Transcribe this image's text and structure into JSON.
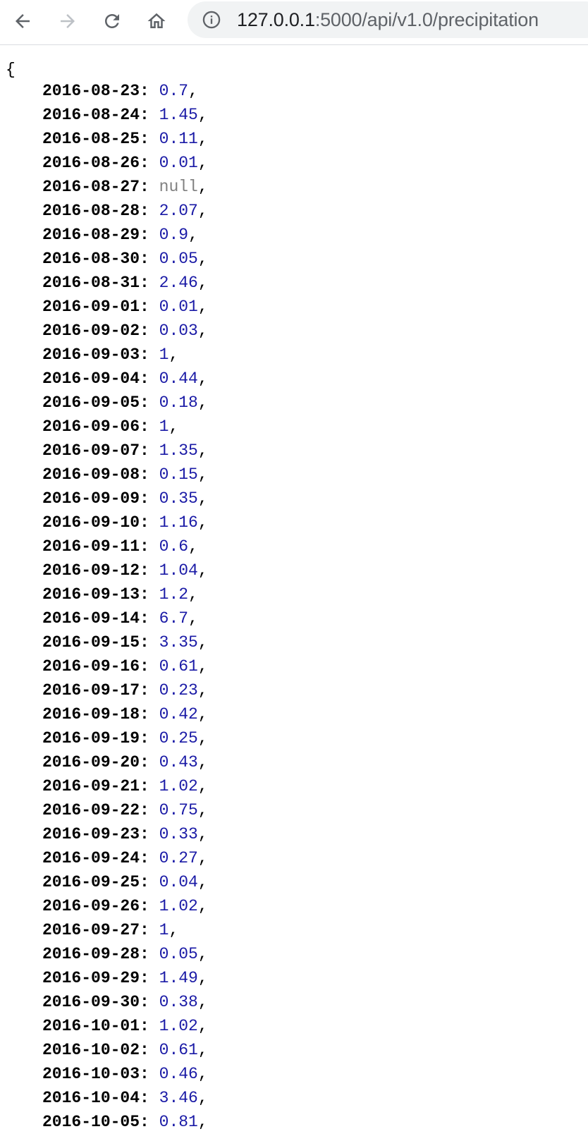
{
  "browser": {
    "url_host": "127.0.0.1",
    "url_rest": ":5000/api/v1.0/precipitation",
    "icons": {
      "back": "arrow-left-icon",
      "forward": "arrow-right-icon",
      "reload": "reload-icon",
      "home": "home-icon",
      "site_info": "info-icon"
    }
  },
  "json": {
    "open_brace": "{",
    "entries": [
      {
        "date": "2016-08-23",
        "value": "0.7"
      },
      {
        "date": "2016-08-24",
        "value": "1.45"
      },
      {
        "date": "2016-08-25",
        "value": "0.11"
      },
      {
        "date": "2016-08-26",
        "value": "0.01"
      },
      {
        "date": "2016-08-27",
        "value": "null"
      },
      {
        "date": "2016-08-28",
        "value": "2.07"
      },
      {
        "date": "2016-08-29",
        "value": "0.9"
      },
      {
        "date": "2016-08-30",
        "value": "0.05"
      },
      {
        "date": "2016-08-31",
        "value": "2.46"
      },
      {
        "date": "2016-09-01",
        "value": "0.01"
      },
      {
        "date": "2016-09-02",
        "value": "0.03"
      },
      {
        "date": "2016-09-03",
        "value": "1"
      },
      {
        "date": "2016-09-04",
        "value": "0.44"
      },
      {
        "date": "2016-09-05",
        "value": "0.18"
      },
      {
        "date": "2016-09-06",
        "value": "1"
      },
      {
        "date": "2016-09-07",
        "value": "1.35"
      },
      {
        "date": "2016-09-08",
        "value": "0.15"
      },
      {
        "date": "2016-09-09",
        "value": "0.35"
      },
      {
        "date": "2016-09-10",
        "value": "1.16"
      },
      {
        "date": "2016-09-11",
        "value": "0.6"
      },
      {
        "date": "2016-09-12",
        "value": "1.04"
      },
      {
        "date": "2016-09-13",
        "value": "1.2"
      },
      {
        "date": "2016-09-14",
        "value": "6.7"
      },
      {
        "date": "2016-09-15",
        "value": "3.35"
      },
      {
        "date": "2016-09-16",
        "value": "0.61"
      },
      {
        "date": "2016-09-17",
        "value": "0.23"
      },
      {
        "date": "2016-09-18",
        "value": "0.42"
      },
      {
        "date": "2016-09-19",
        "value": "0.25"
      },
      {
        "date": "2016-09-20",
        "value": "0.43"
      },
      {
        "date": "2016-09-21",
        "value": "1.02"
      },
      {
        "date": "2016-09-22",
        "value": "0.75"
      },
      {
        "date": "2016-09-23",
        "value": "0.33"
      },
      {
        "date": "2016-09-24",
        "value": "0.27"
      },
      {
        "date": "2016-09-25",
        "value": "0.04"
      },
      {
        "date": "2016-09-26",
        "value": "1.02"
      },
      {
        "date": "2016-09-27",
        "value": "1"
      },
      {
        "date": "2016-09-28",
        "value": "0.05"
      },
      {
        "date": "2016-09-29",
        "value": "1.49"
      },
      {
        "date": "2016-09-30",
        "value": "0.38"
      },
      {
        "date": "2016-10-01",
        "value": "1.02"
      },
      {
        "date": "2016-10-02",
        "value": "0.61"
      },
      {
        "date": "2016-10-03",
        "value": "0.46"
      },
      {
        "date": "2016-10-04",
        "value": "3.46"
      },
      {
        "date": "2016-10-05",
        "value": "0.81"
      }
    ]
  },
  "colors": {
    "key": "#000000",
    "number": "#1a1aa6",
    "null": "#808080"
  }
}
